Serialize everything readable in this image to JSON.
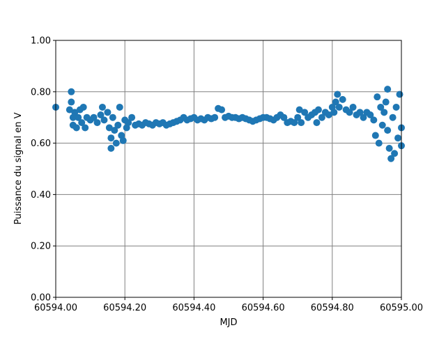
{
  "chart_data": {
    "type": "scatter",
    "x_label": "MJD",
    "y_label": "Puissance du signal en V",
    "color": "#1f77b4",
    "grid": true,
    "xlim": [
      60594.0,
      60595.0
    ],
    "xticks": [
      {
        "value": 60594.0,
        "label": "60594.00"
      },
      {
        "value": 60594.2,
        "label": "60594.20"
      },
      {
        "value": 60594.4,
        "label": "60594.40"
      },
      {
        "value": 60594.6,
        "label": "60594.60"
      },
      {
        "value": 60594.8,
        "label": "60594.80"
      },
      {
        "value": 60595.0,
        "label": "60595.00"
      }
    ],
    "ylim": [
      0,
      1
    ],
    "yticks": [
      {
        "value": 0,
        "label": "0.00"
      },
      {
        "value": 0.2,
        "label": "0.20"
      },
      {
        "value": 0.4,
        "label": "0.40"
      },
      {
        "value": 0.6,
        "label": "0.60"
      },
      {
        "value": 0.8,
        "label": "0.80"
      },
      {
        "value": 1,
        "label": "1.00"
      }
    ],
    "x": [
      60594.0,
      60594.04,
      60594.045,
      60594.045,
      60594.05,
      60594.05,
      60594.055,
      60594.06,
      60594.065,
      60594.07,
      60594.075,
      60594.08,
      60594.085,
      60594.09,
      60594.1,
      60594.11,
      60594.12,
      60594.13,
      60594.135,
      60594.14,
      60594.15,
      60594.155,
      60594.16,
      60594.16,
      60594.165,
      60594.17,
      60594.175,
      60594.18,
      60594.185,
      60594.19,
      60594.195,
      60594.2,
      60594.205,
      60594.21,
      60594.22,
      60594.23,
      60594.24,
      60594.25,
      60594.26,
      60594.27,
      60594.28,
      60594.29,
      60594.3,
      60594.31,
      60594.32,
      60594.33,
      60594.34,
      60594.35,
      60594.36,
      60594.37,
      60594.38,
      60594.39,
      60594.4,
      60594.41,
      60594.42,
      60594.43,
      60594.44,
      60594.45,
      60594.46,
      60594.47,
      60594.48,
      60594.49,
      60594.5,
      60594.51,
      60594.52,
      60594.53,
      60594.54,
      60594.55,
      60594.56,
      60594.57,
      60594.58,
      60594.59,
      60594.6,
      60594.61,
      60594.62,
      60594.63,
      60594.64,
      60594.65,
      60594.66,
      60594.67,
      60594.68,
      60594.69,
      60594.7,
      60594.705,
      60594.71,
      60594.72,
      60594.73,
      60594.74,
      60594.75,
      60594.755,
      60594.76,
      60594.77,
      60594.78,
      60594.79,
      60594.8,
      60594.805,
      60594.81,
      60594.815,
      60594.82,
      60594.83,
      60594.84,
      60594.85,
      60594.86,
      60594.87,
      60594.88,
      60594.89,
      60594.9,
      60594.91,
      60594.92,
      60594.925,
      60594.93,
      60594.935,
      60594.94,
      60594.945,
      60594.95,
      60594.955,
      60594.96,
      60594.96,
      60594.965,
      60594.97,
      60594.975,
      60594.98,
      60594.985,
      60594.99,
      60594.995,
      60595.0,
      60595.0
    ],
    "values": [
      0.74,
      0.73,
      0.8,
      0.76,
      0.7,
      0.67,
      0.72,
      0.66,
      0.7,
      0.73,
      0.68,
      0.74,
      0.66,
      0.7,
      0.69,
      0.7,
      0.68,
      0.71,
      0.74,
      0.69,
      0.72,
      0.66,
      0.58,
      0.62,
      0.7,
      0.65,
      0.6,
      0.67,
      0.74,
      0.63,
      0.61,
      0.69,
      0.66,
      0.68,
      0.7,
      0.67,
      0.675,
      0.67,
      0.68,
      0.675,
      0.67,
      0.68,
      0.675,
      0.68,
      0.67,
      0.675,
      0.68,
      0.685,
      0.69,
      0.7,
      0.69,
      0.695,
      0.7,
      0.69,
      0.695,
      0.69,
      0.7,
      0.695,
      0.7,
      0.735,
      0.73,
      0.7,
      0.705,
      0.7,
      0.7,
      0.695,
      0.7,
      0.695,
      0.69,
      0.685,
      0.69,
      0.695,
      0.7,
      0.7,
      0.695,
      0.69,
      0.7,
      0.71,
      0.7,
      0.68,
      0.685,
      0.68,
      0.7,
      0.73,
      0.68,
      0.72,
      0.7,
      0.71,
      0.72,
      0.68,
      0.73,
      0.7,
      0.72,
      0.71,
      0.74,
      0.72,
      0.76,
      0.79,
      0.74,
      0.77,
      0.73,
      0.72,
      0.74,
      0.71,
      0.72,
      0.7,
      0.72,
      0.71,
      0.69,
      0.63,
      0.78,
      0.6,
      0.74,
      0.67,
      0.72,
      0.76,
      0.81,
      0.65,
      0.58,
      0.54,
      0.7,
      0.56,
      0.74,
      0.62,
      0.79,
      0.66,
      0.59
    ]
  }
}
